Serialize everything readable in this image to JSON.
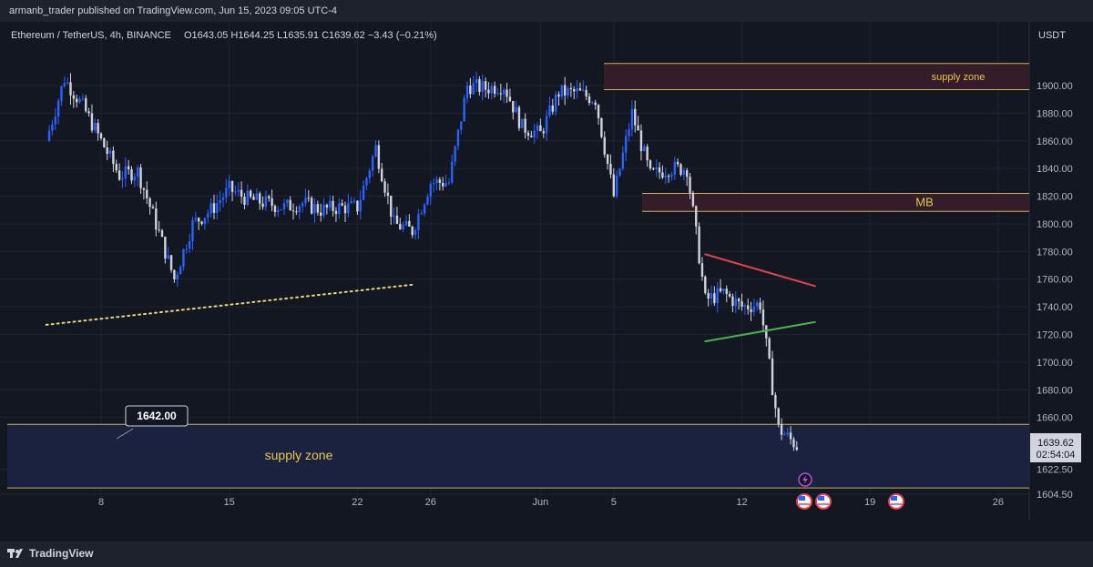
{
  "header": {
    "published": "armanb_trader published on TradingView.com, Jun 15, 2023 09:05 UTC-4"
  },
  "footer": {
    "brand": "TradingView"
  },
  "colors": {
    "background": "#131722",
    "up_candle": "#2962ff",
    "down_candle": "#d1d4dc",
    "supply_zone_fill": "#3a1d2a",
    "supply_zone_border": "#c9b15d",
    "demand_zone_fill": "#1b2342",
    "triangle_upper": "#e04050",
    "triangle_lower": "#4caf50",
    "dotted_trend": "#e6d57a",
    "zone_label": "#e6c94a"
  },
  "chart_data": {
    "type": "candlestick",
    "legend": {
      "symbol": "Ethereum / TetherUS, 4h, BINANCE",
      "ohlc": "O1643.05 H1644.25 L1635.91 C1639.62 −3.43 (−0.21%)"
    },
    "currency": "USDT",
    "yticks": [
      "1900.00",
      "1880.00",
      "1860.00",
      "1840.00",
      "1820.00",
      "1800.00",
      "1780.00",
      "1760.00",
      "1740.00",
      "1720.00",
      "1700.00",
      "1680.00",
      "1660.00",
      "1622.50",
      "1604.50"
    ],
    "xticks": [
      "8",
      "15",
      "22",
      "26",
      "Jun",
      "5",
      "12",
      "19",
      "26"
    ],
    "ylim": [
      1596,
      1928
    ],
    "last_price": "1639.62",
    "countdown": "02:54:04",
    "price_marker": "1642.00",
    "zones": [
      {
        "label": "supply zone",
        "low": 1897,
        "high": 1916
      },
      {
        "label": "MB",
        "low": 1809,
        "high": 1822
      },
      {
        "label": "supply zone",
        "low": 1609,
        "high": 1655
      }
    ],
    "close_path": [
      {
        "x": "May 5",
        "y": 1860
      },
      {
        "x": "May 6",
        "y": 1905
      },
      {
        "x": "May 7",
        "y": 1885
      },
      {
        "x": "May 8",
        "y": 1860
      },
      {
        "x": "May 9",
        "y": 1835
      },
      {
        "x": "May 10",
        "y": 1838
      },
      {
        "x": "May 11",
        "y": 1800
      },
      {
        "x": "May 12",
        "y": 1760
      },
      {
        "x": "May 13",
        "y": 1800
      },
      {
        "x": "May 14",
        "y": 1810
      },
      {
        "x": "May 15",
        "y": 1825
      },
      {
        "x": "May 16",
        "y": 1818
      },
      {
        "x": "May 17",
        "y": 1815
      },
      {
        "x": "May 18",
        "y": 1812
      },
      {
        "x": "May 19",
        "y": 1815
      },
      {
        "x": "May 20",
        "y": 1810
      },
      {
        "x": "May 21",
        "y": 1812
      },
      {
        "x": "May 22",
        "y": 1812
      },
      {
        "x": "May 23",
        "y": 1855
      },
      {
        "x": "May 24",
        "y": 1800
      },
      {
        "x": "May 25",
        "y": 1795
      },
      {
        "x": "May 26",
        "y": 1830
      },
      {
        "x": "May 27",
        "y": 1830
      },
      {
        "x": "May 28",
        "y": 1900
      },
      {
        "x": "May 29",
        "y": 1898
      },
      {
        "x": "May 30",
        "y": 1900
      },
      {
        "x": "May 31",
        "y": 1870
      },
      {
        "x": "Jun 1",
        "y": 1865
      },
      {
        "x": "Jun 2",
        "y": 1895
      },
      {
        "x": "Jun 3",
        "y": 1895
      },
      {
        "x": "Jun 4",
        "y": 1890
      },
      {
        "x": "Jun 5",
        "y": 1820
      },
      {
        "x": "Jun 6",
        "y": 1880
      },
      {
        "x": "Jun 7",
        "y": 1835
      },
      {
        "x": "Jun 8",
        "y": 1840
      },
      {
        "x": "Jun 9",
        "y": 1840
      },
      {
        "x": "Jun 10",
        "y": 1745
      },
      {
        "x": "Jun 11",
        "y": 1750
      },
      {
        "x": "Jun 12",
        "y": 1740
      },
      {
        "x": "Jun 13",
        "y": 1742
      },
      {
        "x": "Jun 14",
        "y": 1652
      },
      {
        "x": "Jun 15",
        "y": 1639.62
      }
    ],
    "trendlines": [
      {
        "name": "dotted-support",
        "from": {
          "x": "May 5",
          "y": 1727
        },
        "to": {
          "x": "May 25",
          "y": 1756
        }
      },
      {
        "name": "triangle-upper",
        "from": {
          "x": "Jun 10",
          "y": 1778
        },
        "to": {
          "x": "Jun 16",
          "y": 1755
        }
      },
      {
        "name": "triangle-lower",
        "from": {
          "x": "Jun 10",
          "y": 1715
        },
        "to": {
          "x": "Jun 16",
          "y": 1729
        }
      }
    ]
  }
}
